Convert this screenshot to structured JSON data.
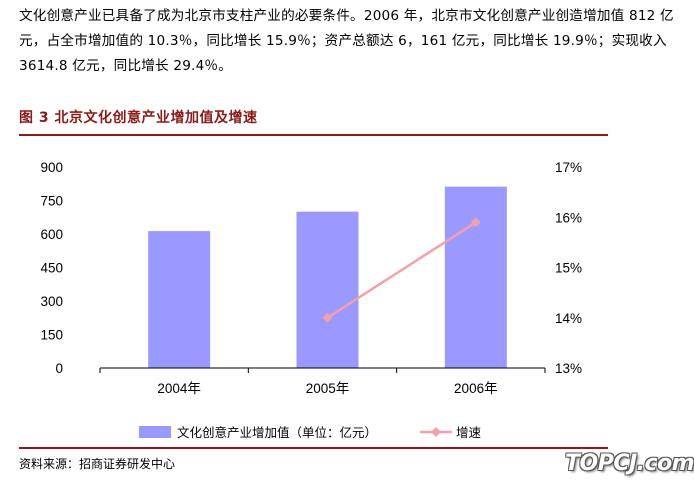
{
  "intro": {
    "text": "文化创意产业已具备了成为北京市支柱产业的必要条件。2006 年，北京市文化创意产业创造增加值 812 亿元，占全市增加值的 10.3％，同比增长 15.9％；资产总额达 6，161 亿元，同比增长 19.9％；实现收入 3614.8 亿元，同比增长 29.4％。"
  },
  "figure": {
    "title": "图 3 北京文化创意产业增加值及增速"
  },
  "chart_data": {
    "type": "bar",
    "categories": [
      "2004年",
      "2005年",
      "2006年"
    ],
    "series": [
      {
        "name": "文化创意产业增加值（单位：亿元）",
        "type": "bar",
        "axis": "left",
        "values": [
          613,
          700,
          812
        ],
        "color": "#9999ff"
      },
      {
        "name": "增速",
        "type": "line",
        "axis": "right",
        "values": [
          null,
          14.0,
          15.9
        ],
        "color": "#f4a0a8"
      }
    ],
    "y_left": {
      "ticks": [
        "900",
        "750",
        "600",
        "450",
        "300",
        "150",
        "0"
      ],
      "ylim": [
        0,
        900
      ]
    },
    "y_right": {
      "ticks": [
        "17%",
        "16%",
        "15%",
        "14%",
        "13%"
      ],
      "ylim": [
        13,
        17
      ]
    },
    "legend_position": "bottom",
    "grid": false
  },
  "source": {
    "text": "资料来源：招商证券研发中心"
  },
  "watermark": {
    "text": "TOPCJ.com"
  }
}
